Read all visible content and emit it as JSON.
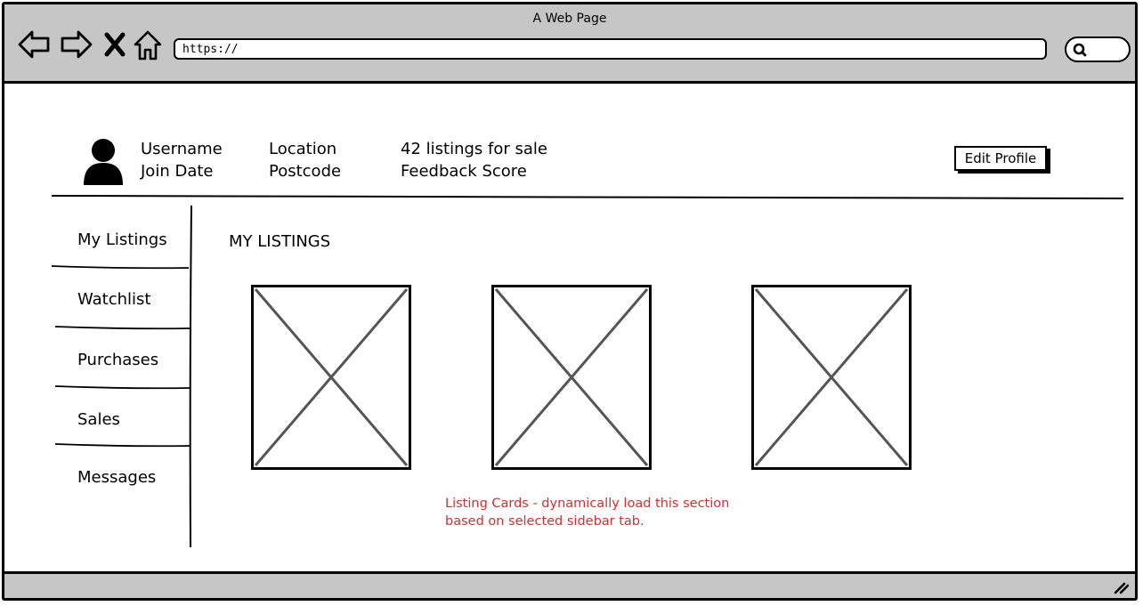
{
  "window": {
    "title": "A Web Page",
    "url": "https://"
  },
  "profile": {
    "username": "Username",
    "join_date": "Join Date",
    "location": "Location",
    "postcode": "Postcode",
    "listings_count": "42 listings for sale",
    "feedback": "Feedback Score",
    "edit_button": "Edit Profile"
  },
  "sidebar": {
    "items": [
      {
        "label": "My Listings"
      },
      {
        "label": "Watchlist"
      },
      {
        "label": "Purchases"
      },
      {
        "label": "Sales"
      },
      {
        "label": "Messages"
      }
    ]
  },
  "main": {
    "section_title": "MY LISTINGS",
    "note": "Listing Cards - dynamically load this section based on selected sidebar tab.",
    "note_color": "#d03030"
  },
  "icons": {
    "back": "back-arrow-icon",
    "forward": "forward-arrow-icon",
    "stop": "close-icon",
    "home": "home-icon",
    "search": "search-icon",
    "avatar": "user-avatar-icon",
    "placeholder": "image-placeholder-icon"
  }
}
